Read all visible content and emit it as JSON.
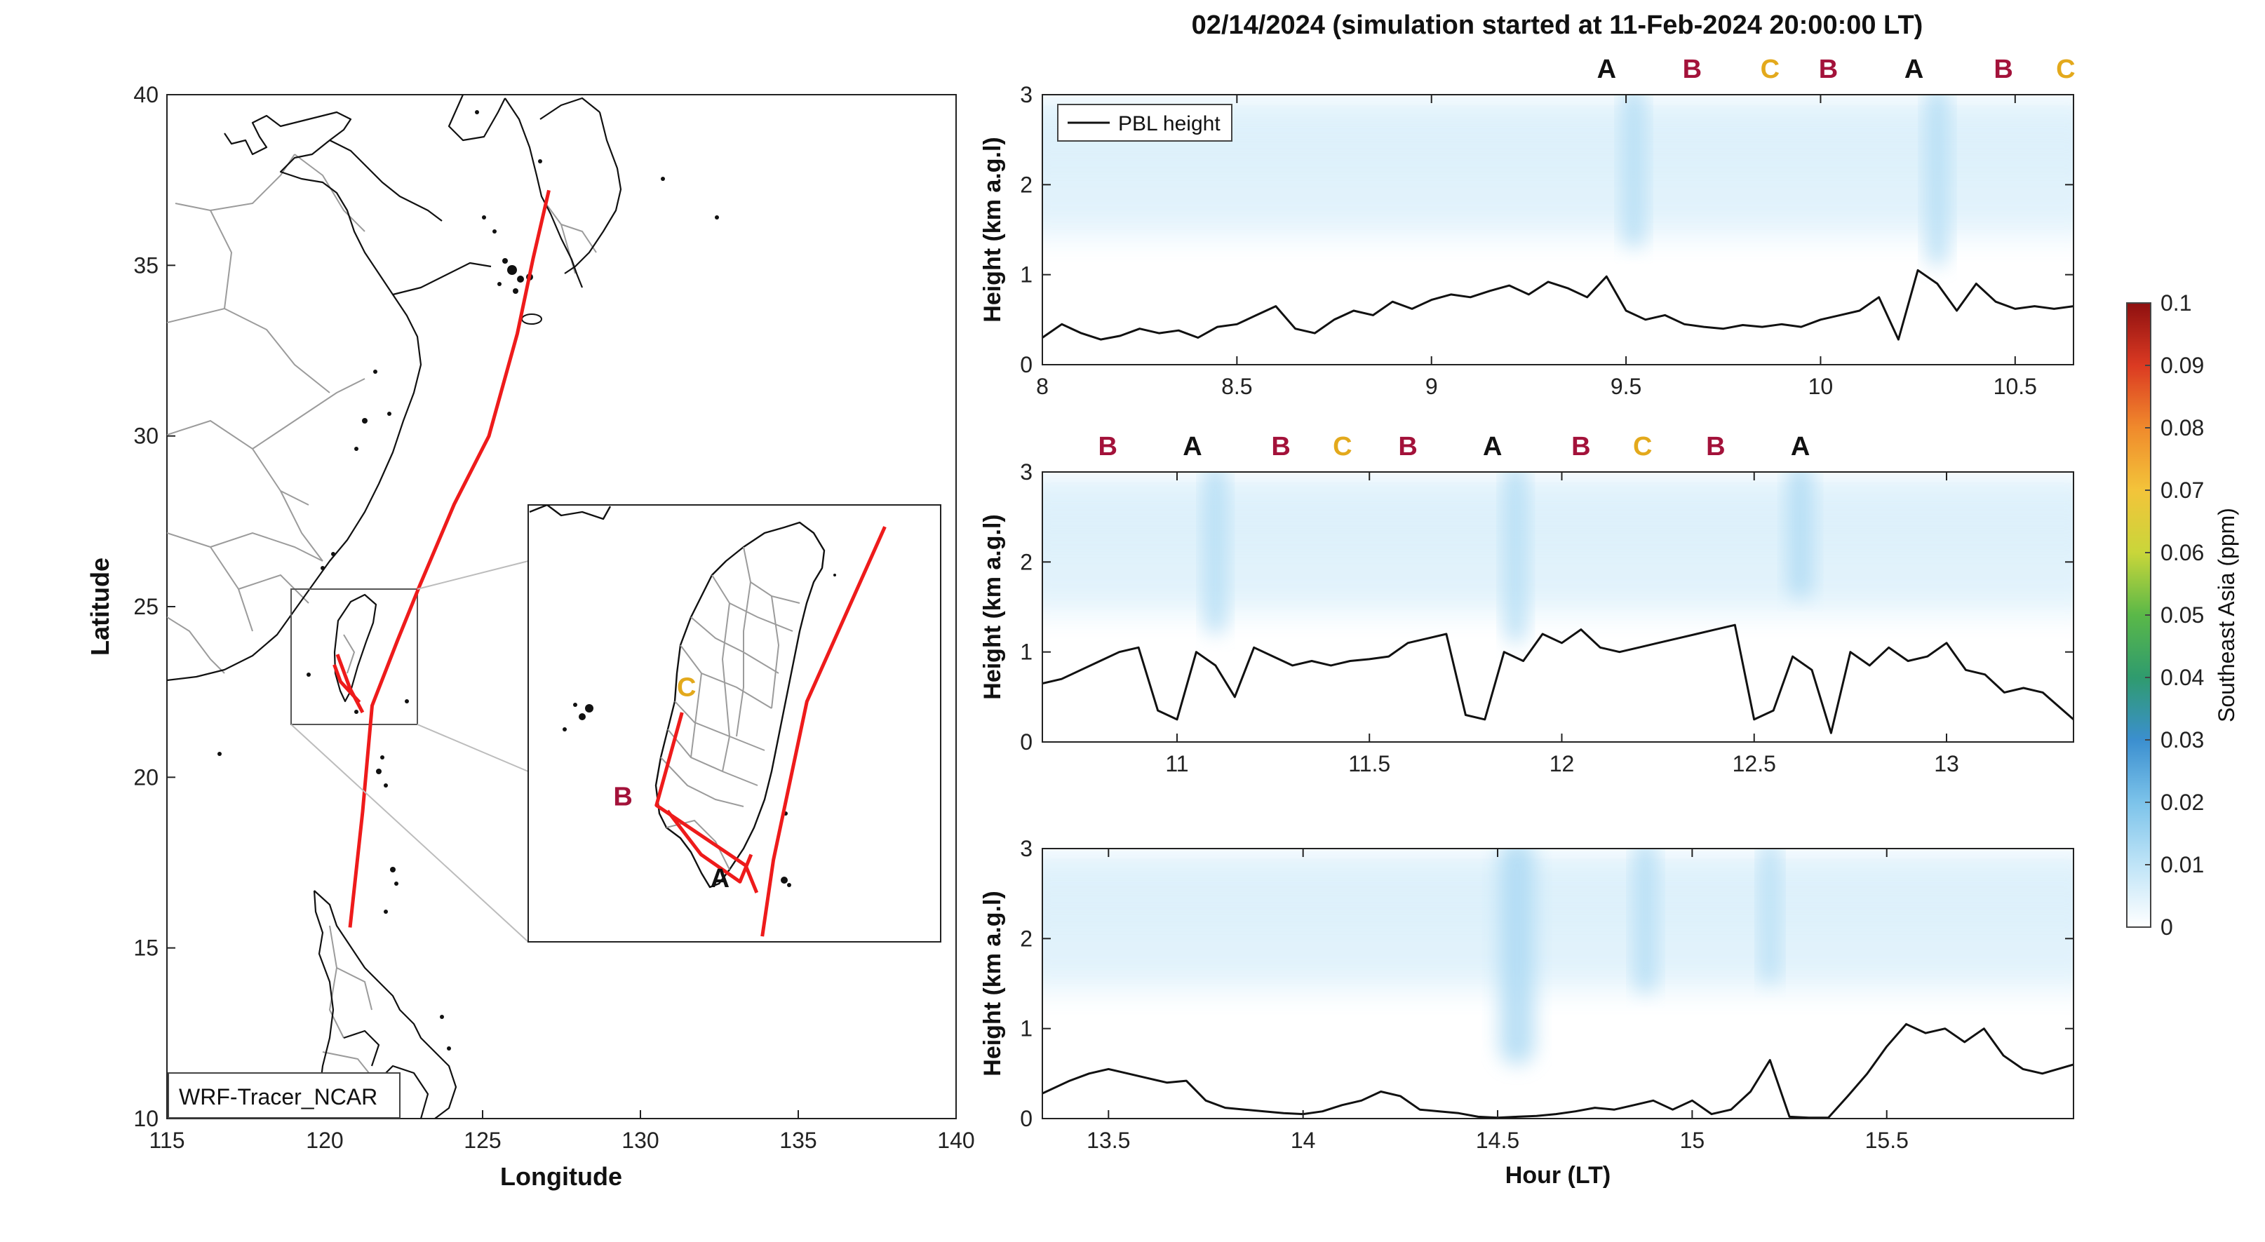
{
  "figure": {
    "title": "02/14/2024 (simulation started at 11-Feb-2024 20:00:00 LT)"
  },
  "colors": {
    "track": "#ee1b1b",
    "marker_A": "#111111",
    "marker_B": "#a3123a",
    "marker_C": "#e3a91c",
    "coast": "#111111",
    "border": "#9b9b9b",
    "pbl_line": "#111111",
    "tracer_light": "#dcf0fb",
    "tracer_mid": "#a9d8f3"
  },
  "chart_data": [
    {
      "type": "map",
      "name": "trajectory-map",
      "xlabel": "Longitude",
      "ylabel": "Latitude",
      "xlim": [
        115,
        140
      ],
      "ylim": [
        10,
        40
      ],
      "xticks": [
        115,
        120,
        125,
        130,
        135,
        140
      ],
      "yticks": [
        10,
        15,
        20,
        25,
        30,
        35,
        40
      ],
      "label_box": "WRF-Tracer_NCAR",
      "track": {
        "lon": [
          120.8,
          121.2,
          121.5,
          122.3,
          123.0,
          124.1,
          125.2,
          126.1,
          126.6,
          127.1
        ],
        "lat": [
          15.6,
          19.0,
          22.1,
          24.0,
          25.6,
          28.0,
          30.0,
          33.0,
          35.2,
          37.2
        ]
      },
      "legs": [
        {
          "lon": [
            120.3,
            120.5,
            121.1
          ],
          "lat": [
            23.3,
            22.8,
            22.2
          ]
        },
        {
          "lon": [
            120.4,
            120.8,
            121.2
          ],
          "lat": [
            23.6,
            22.6,
            21.9
          ]
        }
      ],
      "inset": {
        "lon_range": [
          119.0,
          122.7
        ],
        "lat_range": [
          21.5,
          25.5
        ],
        "track": {
          "lon": [
            121.1,
            121.2,
            121.5,
            122.2
          ],
          "lat": [
            21.55,
            22.25,
            23.7,
            25.3
          ]
        },
        "legs": [
          {
            "lon": [
              120.25,
              120.55,
              120.9,
              121.0
            ],
            "lat": [
              22.7,
              22.3,
              22.05,
              22.3
            ]
          },
          {
            "lon": [
              120.38,
              120.15,
              120.95,
              121.05
            ],
            "lat": [
              23.6,
              22.75,
              22.2,
              21.95
            ]
          }
        ],
        "markers": [
          {
            "label": "A",
            "lon": 120.72,
            "lat": 22.0
          },
          {
            "label": "B",
            "lon": 119.85,
            "lat": 22.75
          },
          {
            "label": "C",
            "lon": 120.42,
            "lat": 23.75
          }
        ]
      }
    },
    {
      "type": "heatmap-line",
      "name": "panel-1",
      "ylabel": "Height (km a.g.l)",
      "xlim": [
        8,
        10.65
      ],
      "ylim": [
        0,
        3
      ],
      "xticks": [
        8,
        8.5,
        9,
        9.5,
        10,
        10.5
      ],
      "yticks": [
        0,
        1,
        2,
        3
      ],
      "legend": "PBL height",
      "legend_position": "top-left",
      "markers": [
        {
          "label": "A",
          "x": 9.45
        },
        {
          "label": "B",
          "x": 9.67
        },
        {
          "label": "C",
          "x": 9.87
        },
        {
          "label": "B",
          "x": 10.02
        },
        {
          "label": "A",
          "x": 10.24
        },
        {
          "label": "B",
          "x": 10.47
        },
        {
          "label": "C",
          "x": 10.63
        }
      ],
      "plumes": [
        {
          "x": 9.52,
          "width": 0.05,
          "bottom": 1.3
        },
        {
          "x": 10.3,
          "width": 0.05,
          "bottom": 1.1
        }
      ],
      "pbl": {
        "x": [
          8.0,
          8.05,
          8.1,
          8.15,
          8.2,
          8.25,
          8.3,
          8.35,
          8.4,
          8.45,
          8.5,
          8.55,
          8.6,
          8.65,
          8.7,
          8.75,
          8.8,
          8.85,
          8.9,
          8.95,
          9.0,
          9.05,
          9.1,
          9.15,
          9.2,
          9.25,
          9.3,
          9.35,
          9.4,
          9.45,
          9.5,
          9.55,
          9.6,
          9.65,
          9.7,
          9.75,
          9.8,
          9.85,
          9.9,
          9.95,
          10.0,
          10.05,
          10.1,
          10.15,
          10.2,
          10.25,
          10.3,
          10.35,
          10.4,
          10.45,
          10.5,
          10.55,
          10.6,
          10.65
        ],
        "y": [
          0.3,
          0.45,
          0.35,
          0.28,
          0.32,
          0.4,
          0.35,
          0.38,
          0.3,
          0.42,
          0.45,
          0.55,
          0.65,
          0.4,
          0.35,
          0.5,
          0.6,
          0.55,
          0.7,
          0.62,
          0.72,
          0.78,
          0.75,
          0.82,
          0.88,
          0.78,
          0.92,
          0.85,
          0.75,
          0.98,
          0.6,
          0.5,
          0.55,
          0.45,
          0.42,
          0.4,
          0.44,
          0.42,
          0.45,
          0.42,
          0.5,
          0.55,
          0.6,
          0.75,
          0.28,
          1.05,
          0.9,
          0.6,
          0.9,
          0.7,
          0.62,
          0.65,
          0.62,
          0.65
        ]
      }
    },
    {
      "type": "heatmap-line",
      "name": "panel-2",
      "ylabel": "Height (km a.g.l)",
      "xlim": [
        10.65,
        13.33
      ],
      "ylim": [
        0,
        3
      ],
      "xticks": [
        11,
        11.5,
        12,
        12.5,
        13
      ],
      "yticks": [
        0,
        1,
        2,
        3
      ],
      "markers": [
        {
          "label": "B",
          "x": 10.82
        },
        {
          "label": "A",
          "x": 11.04
        },
        {
          "label": "B",
          "x": 11.27
        },
        {
          "label": "C",
          "x": 11.43
        },
        {
          "label": "B",
          "x": 11.6
        },
        {
          "label": "A",
          "x": 11.82
        },
        {
          "label": "B",
          "x": 12.05
        },
        {
          "label": "C",
          "x": 12.21
        },
        {
          "label": "B",
          "x": 12.4
        },
        {
          "label": "A",
          "x": 12.62
        }
      ],
      "plumes": [
        {
          "x": 11.1,
          "width": 0.05,
          "bottom": 1.2
        },
        {
          "x": 11.88,
          "width": 0.05,
          "bottom": 1.1
        },
        {
          "x": 12.62,
          "width": 0.06,
          "bottom": 1.6
        }
      ],
      "pbl": {
        "x": [
          10.65,
          10.7,
          10.75,
          10.8,
          10.85,
          10.9,
          10.95,
          11.0,
          11.05,
          11.1,
          11.15,
          11.2,
          11.25,
          11.3,
          11.35,
          11.4,
          11.45,
          11.5,
          11.55,
          11.6,
          11.65,
          11.7,
          11.75,
          11.8,
          11.85,
          11.9,
          11.95,
          12.0,
          12.05,
          12.1,
          12.15,
          12.2,
          12.25,
          12.3,
          12.35,
          12.4,
          12.45,
          12.5,
          12.55,
          12.6,
          12.65,
          12.7,
          12.75,
          12.8,
          12.85,
          12.9,
          12.95,
          13.0,
          13.05,
          13.1,
          13.15,
          13.2,
          13.25,
          13.33
        ],
        "y": [
          0.65,
          0.7,
          0.8,
          0.9,
          1.0,
          1.05,
          0.35,
          0.25,
          1.0,
          0.85,
          0.5,
          1.05,
          0.95,
          0.85,
          0.9,
          0.85,
          0.9,
          0.92,
          0.95,
          1.1,
          1.15,
          1.2,
          0.3,
          0.25,
          1.0,
          0.9,
          1.2,
          1.1,
          1.25,
          1.05,
          1.0,
          1.05,
          1.1,
          1.15,
          1.2,
          1.25,
          1.3,
          0.25,
          0.35,
          0.95,
          0.8,
          0.1,
          1.0,
          0.85,
          1.05,
          0.9,
          0.95,
          1.1,
          0.8,
          0.75,
          0.55,
          0.6,
          0.55,
          0.25
        ]
      }
    },
    {
      "type": "heatmap-line",
      "name": "panel-3",
      "xlabel": "Hour (LT)",
      "ylabel": "Height (km a.g.l)",
      "xlim": [
        13.33,
        15.98
      ],
      "ylim": [
        0,
        3
      ],
      "xticks": [
        13.5,
        14,
        14.5,
        15,
        15.5
      ],
      "yticks": [
        0,
        1,
        2,
        3
      ],
      "plumes": [
        {
          "x": 14.55,
          "width": 0.09,
          "bottom": 0.6
        },
        {
          "x": 14.88,
          "width": 0.05,
          "bottom": 1.4
        },
        {
          "x": 15.2,
          "width": 0.04,
          "bottom": 1.5
        }
      ],
      "pbl": {
        "x": [
          13.33,
          13.4,
          13.45,
          13.5,
          13.55,
          13.6,
          13.65,
          13.7,
          13.75,
          13.8,
          13.85,
          13.9,
          13.95,
          14.0,
          14.05,
          14.1,
          14.15,
          14.2,
          14.25,
          14.3,
          14.35,
          14.4,
          14.45,
          14.5,
          14.55,
          14.6,
          14.65,
          14.7,
          14.75,
          14.8,
          14.85,
          14.9,
          14.95,
          15.0,
          15.05,
          15.1,
          15.15,
          15.2,
          15.25,
          15.3,
          15.35,
          15.4,
          15.45,
          15.5,
          15.55,
          15.6,
          15.65,
          15.7,
          15.75,
          15.8,
          15.85,
          15.9,
          15.98
        ],
        "y": [
          0.28,
          0.42,
          0.5,
          0.55,
          0.5,
          0.45,
          0.4,
          0.42,
          0.2,
          0.12,
          0.1,
          0.08,
          0.06,
          0.05,
          0.08,
          0.15,
          0.2,
          0.3,
          0.25,
          0.1,
          0.08,
          0.06,
          0.02,
          0.01,
          0.02,
          0.03,
          0.05,
          0.08,
          0.12,
          0.1,
          0.15,
          0.2,
          0.1,
          0.2,
          0.05,
          0.1,
          0.3,
          0.65,
          0.02,
          0.01,
          0.01,
          0.25,
          0.5,
          0.8,
          1.05,
          0.95,
          1.0,
          0.85,
          1.0,
          0.7,
          0.55,
          0.5,
          0.6
        ]
      }
    },
    {
      "type": "colorbar",
      "name": "concentration-colorbar",
      "label": "Southeast Asia (ppm)",
      "range": [
        0,
        0.1
      ],
      "ticks": [
        "0",
        "0.01",
        "0.02",
        "0.03",
        "0.04",
        "0.05",
        "0.06",
        "0.07",
        "0.08",
        "0.09",
        "0.1"
      ],
      "colormap": [
        "#ffffff",
        "#bfe4f7",
        "#7cc3ea",
        "#3b8fcf",
        "#2f9b6e",
        "#5ab848",
        "#c9d63a",
        "#f3c43a",
        "#f08a2c",
        "#db3a22",
        "#8e1010"
      ]
    }
  ]
}
